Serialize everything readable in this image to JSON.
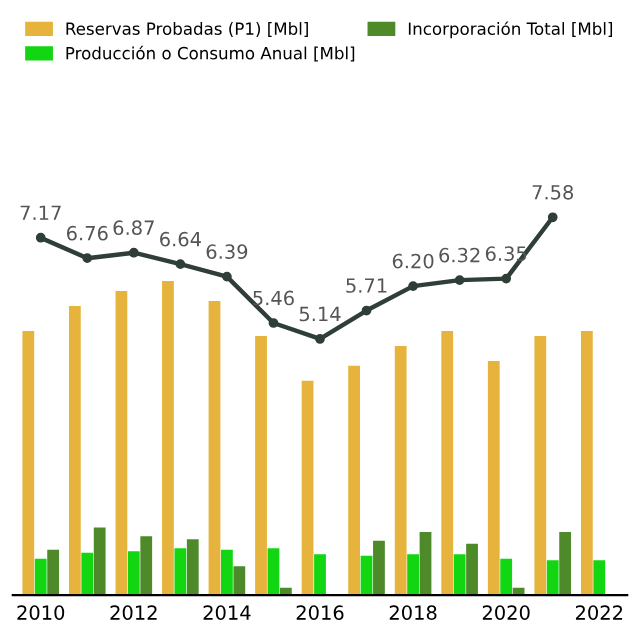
{
  "chart_data": {
    "type": "bar",
    "categories": [
      "2010",
      null,
      "2012",
      null,
      "2014",
      null,
      "2016",
      null,
      "2018",
      null,
      "2020",
      null,
      "2022"
    ],
    "series": [
      {
        "name": "Reservas Probadas (P1) [Mbl]",
        "color": "#e6b43c",
        "values": [
          5.3,
          5.8,
          6.1,
          6.3,
          5.9,
          5.2,
          4.3,
          4.6,
          5.0,
          5.3,
          4.7,
          5.2,
          5.3
        ]
      },
      {
        "name": "Producción o Consumo Anual [Mbl]",
        "color": "#11d611",
        "values": [
          0.73,
          0.85,
          0.88,
          0.94,
          0.91,
          0.94,
          0.82,
          0.79,
          0.82,
          0.82,
          0.73,
          0.7,
          0.7
        ]
      },
      {
        "name": "Incorporación Total [Mbl]",
        "color": "#4e8a2a",
        "values": [
          0.91,
          1.36,
          1.18,
          1.12,
          0.58,
          0.15,
          null,
          1.09,
          1.27,
          1.03,
          0.15,
          1.27,
          null
        ]
      },
      {
        "type": "line",
        "color": "#2f3e36",
        "marker": "circle",
        "values": [
          7.17,
          6.76,
          6.87,
          6.64,
          6.39,
          5.46,
          5.14,
          5.71,
          6.2,
          6.32,
          6.35,
          7.58,
          null
        ],
        "value_labels": [
          "7.17",
          "6.76",
          "6.87",
          "6.64",
          "6.39",
          "5.46",
          "5.14",
          "5.71",
          "6.20",
          "6.32",
          "6.35",
          "7.58",
          null
        ]
      }
    ],
    "legend": "top",
    "grid": false
  }
}
